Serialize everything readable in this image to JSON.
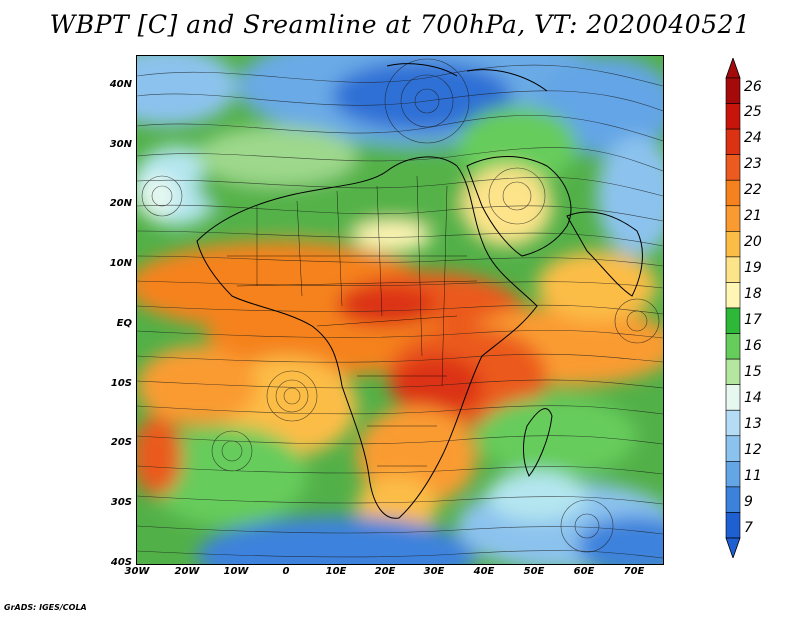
{
  "title": "WBPT [C] and Sreamline at 700hPa, VT: 2020040521",
  "credit": "GrADS: IGES/COLA",
  "axes": {
    "lat_labels": [
      "40N",
      "30N",
      "20N",
      "10N",
      "EQ",
      "10S",
      "20S",
      "30S",
      "40S"
    ],
    "lon_labels": [
      "30W",
      "20W",
      "10W",
      "0",
      "10E",
      "20E",
      "30E",
      "40E",
      "50E",
      "60E",
      "70E"
    ]
  },
  "colorbar": {
    "labels": [
      "26",
      "25",
      "24",
      "23",
      "22",
      "21",
      "20",
      "19",
      "18",
      "17",
      "16",
      "15",
      "14",
      "13",
      "12",
      "11",
      "9",
      "7"
    ],
    "colors": [
      "#a50a0a",
      "#c8140a",
      "#dc3214",
      "#eb5a1e",
      "#f5821e",
      "#fa9b32",
      "#fcbd46",
      "#fde38a",
      "#fff5b4",
      "#2eb83a",
      "#66cc5c",
      "#b4e6a0",
      "#e6f8f0",
      "#b4dcf5",
      "#8cc3ee",
      "#64a5e6",
      "#3c82dc",
      "#1e5fd2"
    ]
  }
}
